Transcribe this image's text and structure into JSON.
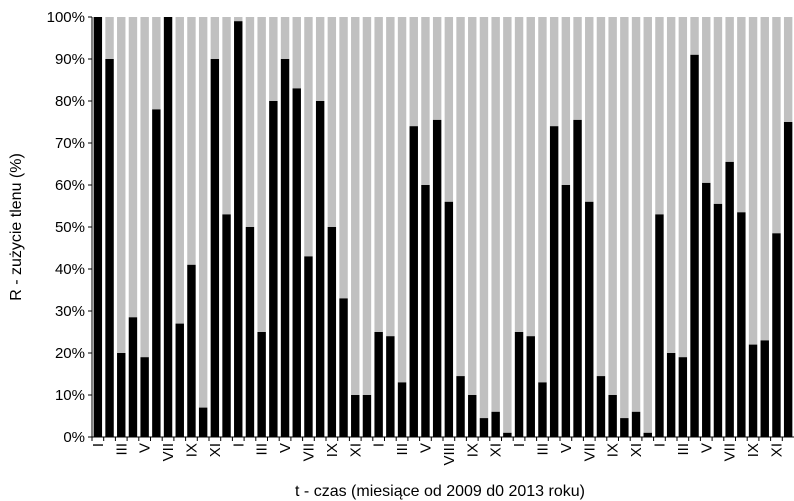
{
  "chart_data": {
    "type": "bar",
    "stacked": true,
    "ylabel": "R - zużycie tlenu (%)",
    "xlabel": "t - czas (miesiące od 2009 d0 2013 roku)",
    "ylim": [
      0,
      100
    ],
    "yticks": [
      "0%",
      "10%",
      "20%",
      "30%",
      "40%",
      "50%",
      "60%",
      "70%",
      "80%",
      "90%",
      "100%"
    ],
    "grid": false,
    "legend": "none",
    "colors": {
      "value": "#000000",
      "remainder": "#c0c0c0"
    },
    "categories": [
      "I",
      "",
      "III",
      "",
      "V",
      "",
      "VII",
      "",
      "IX",
      "",
      "XI",
      "",
      "I",
      "",
      "III",
      "",
      "V",
      "",
      "VII",
      "",
      "IX",
      "",
      "XI",
      "",
      "I",
      "",
      "III",
      "",
      "V",
      "",
      "VIII",
      "",
      "IX",
      "",
      "XI",
      "",
      "I",
      "",
      "III",
      "",
      "V",
      "",
      "VII",
      "",
      "IX",
      "",
      "XI",
      "",
      "I",
      "",
      "III",
      "",
      "V",
      "",
      "VII",
      "",
      "IX",
      "",
      "XI",
      ""
    ],
    "values": [
      100,
      90,
      20,
      28.5,
      19,
      78,
      100,
      27,
      41,
      7,
      90,
      53,
      99,
      50,
      25,
      80,
      90,
      83,
      43,
      80,
      50,
      33,
      10,
      10,
      25,
      24,
      13,
      74,
      60,
      75.5,
      56,
      14.5,
      10,
      4.5,
      6,
      1,
      25,
      24,
      13,
      74,
      60,
      75.5,
      56,
      14.5,
      10,
      4.5,
      6,
      1,
      53,
      20,
      19,
      91,
      60.5,
      55.5,
      65.5,
      53.5,
      22,
      23,
      48.5,
      75
    ]
  }
}
